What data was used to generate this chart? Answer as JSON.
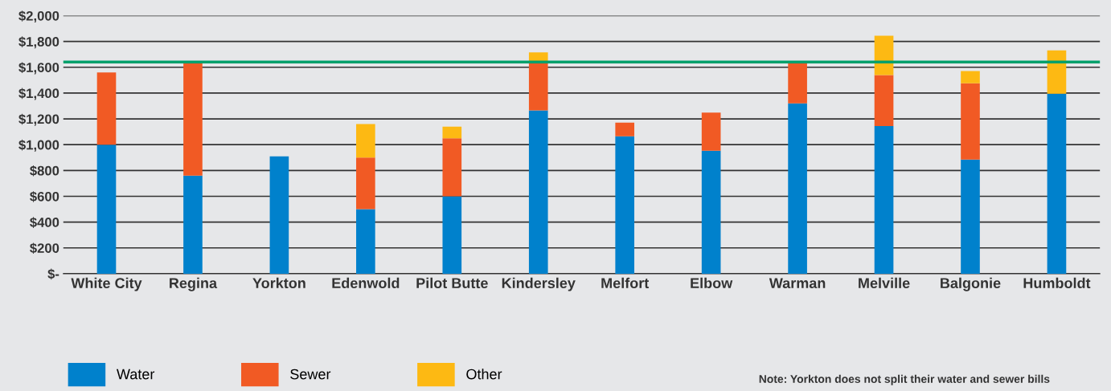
{
  "chart_data": {
    "type": "bar",
    "stacked": true,
    "categories": [
      "White City",
      "Regina",
      "Yorkton",
      "Edenwold",
      "Pilot Butte",
      "Kindersley",
      "Melfort",
      "Elbow",
      "Warman",
      "Melville",
      "Balgonie",
      "Humboldt"
    ],
    "series": [
      {
        "name": "Water",
        "color": "#0081cc",
        "values": [
          1000,
          760,
          910,
          500,
          600,
          1265,
          1065,
          953,
          1320,
          1145,
          885,
          1395
        ]
      },
      {
        "name": "Sewer",
        "color": "#f15a24",
        "values": [
          560,
          875,
          null,
          400,
          450,
          370,
          105,
          295,
          310,
          395,
          590,
          null
        ]
      },
      {
        "name": "Other",
        "color": "#fdb913",
        "values": [
          null,
          null,
          null,
          260,
          90,
          80,
          null,
          null,
          null,
          305,
          95,
          335
        ]
      }
    ],
    "ylim": [
      0,
      2000
    ],
    "yticks": [
      {
        "value": 0,
        "label": "$-"
      },
      {
        "value": 200,
        "label": "$200"
      },
      {
        "value": 400,
        "label": "$400"
      },
      {
        "value": 600,
        "label": "$600"
      },
      {
        "value": 800,
        "label": "$800"
      },
      {
        "value": 1000,
        "label": "$1,000"
      },
      {
        "value": 1200,
        "label": "$1,200"
      },
      {
        "value": 1400,
        "label": "$1,400"
      },
      {
        "value": 1600,
        "label": "$1,600"
      },
      {
        "value": 1800,
        "label": "$1,800"
      },
      {
        "value": 2000,
        "label": "$2,000"
      }
    ],
    "grid": "y",
    "legend": "bottom left",
    "ref_lines": [
      {
        "axis": "y",
        "value": 1640,
        "color": "#00a06b"
      }
    ],
    "annotations": [
      "Note: Yorkton does not split their water and sewer bills"
    ]
  }
}
